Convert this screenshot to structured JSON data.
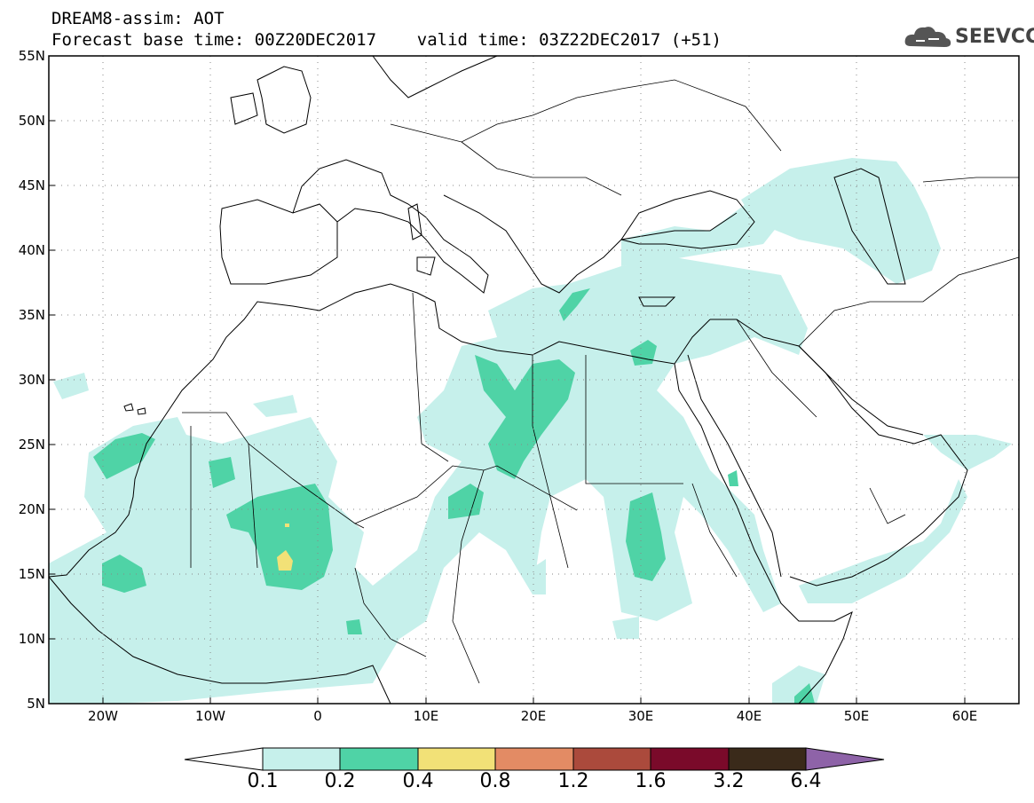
{
  "header": {
    "line1": "DREAM8-assim: AOT",
    "line2": "Forecast base time: 00Z20DEC2017    valid time: 03Z22DEC2017 (+51)"
  },
  "logo": {
    "text": "SEEVCCC",
    "icon": "cloud-icon"
  },
  "map": {
    "lat_labels": [
      "55N",
      "50N",
      "45N",
      "40N",
      "35N",
      "30N",
      "25N",
      "20N",
      "15N",
      "10N",
      "5N"
    ],
    "lon_labels": [
      "20W",
      "10W",
      "0",
      "10E",
      "20E",
      "30E",
      "40E",
      "50E",
      "60E"
    ],
    "lon_range": [
      -25,
      65
    ],
    "lat_range": [
      5,
      55
    ],
    "grid": "dotted"
  },
  "colorbar": {
    "labels": [
      "0.1",
      "0.2",
      "0.4",
      "0.8",
      "1.2",
      "1.6",
      "3.2",
      "6.4"
    ],
    "colors": [
      "#ffffff",
      "#c6f0eb",
      "#4fd3a6",
      "#f2e177",
      "#e38b64",
      "#ab4a3c",
      "#7a0a2a",
      "#3a2a1a",
      "#8e63a8"
    ]
  },
  "levels": {
    "light": "#c6f0eb",
    "medium": "#4fd3a6",
    "high": "#f2e177"
  }
}
